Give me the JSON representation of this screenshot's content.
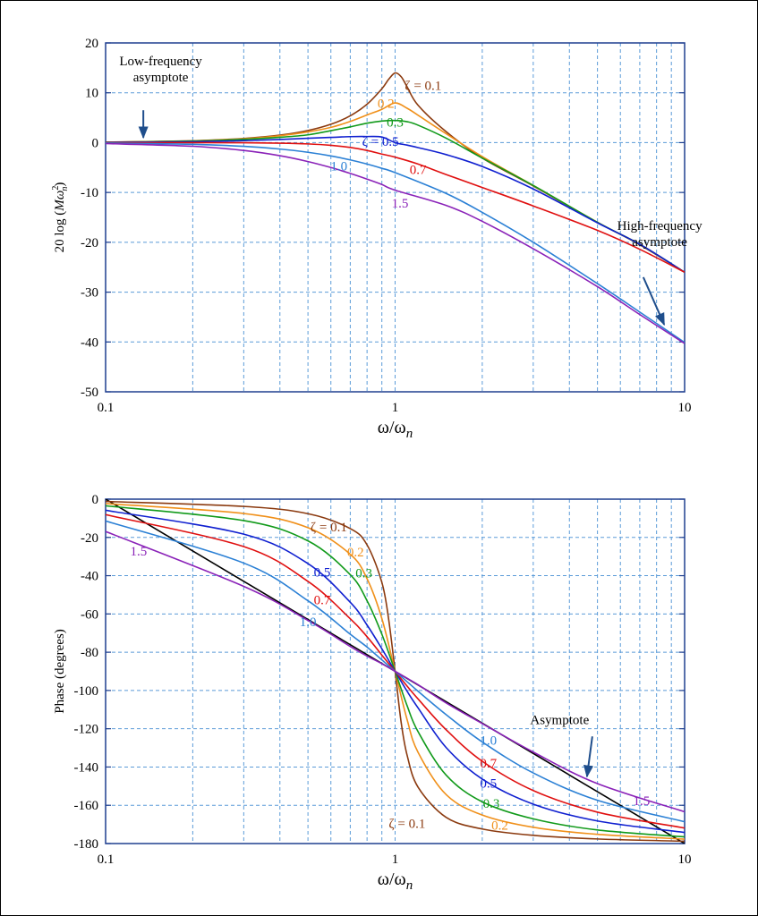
{
  "chart_data": [
    {
      "type": "line",
      "id": "magnitude",
      "xscale": "log",
      "xlim": [
        0.1,
        10
      ],
      "ylim": [
        -50,
        20
      ],
      "xticks": [
        {
          "v": 0.1,
          "label": "0.1"
        },
        {
          "v": 1,
          "label": "1"
        },
        {
          "v": 10,
          "label": "10"
        }
      ],
      "yticks": [
        {
          "v": 20,
          "label": "20"
        },
        {
          "v": 10,
          "label": "10"
        },
        {
          "v": 0,
          "label": "0"
        },
        {
          "v": -10,
          "label": "-10"
        },
        {
          "v": -20,
          "label": "-20"
        },
        {
          "v": -30,
          "label": "-30"
        },
        {
          "v": -40,
          "label": "-40"
        },
        {
          "v": -50,
          "label": "-50"
        }
      ],
      "ylabel": "20 log (Mω",
      "ylabel_sup": "2",
      "ylabel_sub": "n",
      "ylabel_close": ")",
      "xlabel": "ω/ω",
      "xlabel_sub": "n",
      "grid": true,
      "series": [
        {
          "name": "ζ = 0.1",
          "color": "#8B3A0F",
          "x": [
            0.1,
            0.2,
            0.3,
            0.4,
            0.5,
            0.6,
            0.7,
            0.8,
            0.9,
            0.95,
            1.0,
            1.05,
            1.1,
            1.2,
            1.5,
            2,
            3,
            5,
            7,
            10
          ],
          "y": [
            0.09,
            0.37,
            0.84,
            1.5,
            2.43,
            3.68,
            5.38,
            7.7,
            10.8,
            12.7,
            13.98,
            13.2,
            11.2,
            7.5,
            2.2,
            -3.1,
            -8.7,
            -16.0,
            -20.5,
            -26.0
          ]
        },
        {
          "name": "0.2",
          "color": "#F0901A",
          "x": [
            0.1,
            0.2,
            0.3,
            0.4,
            0.5,
            0.6,
            0.7,
            0.8,
            0.9,
            1.0,
            1.1,
            1.2,
            1.5,
            2,
            3,
            5,
            7,
            10
          ],
          "y": [
            0.08,
            0.34,
            0.77,
            1.38,
            2.15,
            3.06,
            4.25,
            5.55,
            6.68,
            7.96,
            6.9,
            5.5,
            1.8,
            -2.8,
            -8.6,
            -16.0,
            -20.4,
            -26.0
          ]
        },
        {
          "name": "0.3",
          "color": "#119A1A",
          "x": [
            0.1,
            0.2,
            0.3,
            0.4,
            0.5,
            0.6,
            0.7,
            0.8,
            0.9,
            1.0,
            1.1,
            1.2,
            1.5,
            2,
            3,
            5,
            7,
            10
          ],
          "y": [
            0.08,
            0.31,
            0.65,
            1.07,
            1.56,
            2.4,
            3.16,
            3.9,
            4.33,
            4.44,
            4.2,
            3.5,
            0.9,
            -3.1,
            -8.6,
            -16.0,
            -20.4,
            -26.0
          ]
        },
        {
          "name": "ζ = 0.5",
          "color": "#1020D0",
          "x": [
            0.1,
            0.2,
            0.3,
            0.4,
            0.5,
            0.6,
            0.7,
            0.8,
            0.9,
            1.0,
            1.1,
            1.2,
            1.5,
            2,
            3,
            5,
            7,
            10
          ],
          "y": [
            0.05,
            0.19,
            0.39,
            0.62,
            0.87,
            1.05,
            1.2,
            1.22,
            1.12,
            0.0,
            -0.5,
            -1.0,
            -2.4,
            -4.8,
            -9.3,
            -16.1,
            -20.4,
            -26.0
          ]
        },
        {
          "name": "0.7",
          "color": "#E01010",
          "x": [
            0.1,
            0.2,
            0.3,
            0.4,
            0.5,
            0.6,
            0.7,
            0.8,
            0.9,
            1.0,
            1.2,
            1.5,
            2,
            3,
            5,
            7,
            10
          ],
          "y": [
            0.0,
            -0.01,
            -0.03,
            -0.11,
            -0.26,
            -0.54,
            -0.97,
            -1.57,
            -2.3,
            -2.92,
            -4.3,
            -6.4,
            -9.0,
            -12.7,
            -17.6,
            -21.4,
            -26.0
          ]
        },
        {
          "name": "1.0",
          "color": "#2B80D5",
          "x": [
            0.1,
            0.2,
            0.3,
            0.4,
            0.5,
            0.6,
            0.7,
            0.8,
            0.9,
            1.0,
            1.5,
            2,
            3,
            5,
            7,
            10
          ],
          "y": [
            -0.09,
            -0.34,
            -0.75,
            -1.29,
            -1.94,
            -2.67,
            -3.47,
            -4.3,
            -5.16,
            -6.02,
            -10.2,
            -14.0,
            -20.0,
            -28.3,
            -34.0,
            -40.1
          ]
        },
        {
          "name": "1.5",
          "color": "#8A22B8",
          "x": [
            0.1,
            0.2,
            0.3,
            0.4,
            0.5,
            0.6,
            0.7,
            0.8,
            0.9,
            1.0,
            1.5,
            2,
            3,
            5,
            7,
            10
          ],
          "y": [
            -0.19,
            -0.73,
            -1.58,
            -2.63,
            -3.8,
            -5.0,
            -6.18,
            -7.32,
            -8.4,
            -9.54,
            -12.6,
            -15.8,
            -21.3,
            -28.9,
            -34.5,
            -40.3
          ]
        }
      ],
      "curve_labels": [
        {
          "text": "ζ = 0.1",
          "color": "#8B3A0F",
          "x": 1.25,
          "y": 11.5
        },
        {
          "text": "0.2",
          "color": "#F0901A",
          "x": 0.93,
          "y": 7.9
        },
        {
          "text": "0.3",
          "color": "#119A1A",
          "x": 1.0,
          "y": 4.1
        },
        {
          "text": "ζ = 0.5",
          "color": "#1020D0",
          "x": 0.89,
          "y": 0.3
        },
        {
          "text": "1.0",
          "color": "#2B80D5",
          "x": 0.64,
          "y": -4.7
        },
        {
          "text": "0.7",
          "color": "#E01010",
          "x": 1.2,
          "y": -5.4
        },
        {
          "text": "1.5",
          "color": "#8A22B8",
          "x": 1.04,
          "y": -12.1
        }
      ],
      "annotations": [
        {
          "lines": [
            "Low-frequency",
            "asymptote"
          ],
          "x": 0.155,
          "y": 15.5,
          "arrow_from": [
            0.135,
            6.5
          ],
          "arrow_to": [
            0.135,
            1
          ]
        },
        {
          "lines": [
            "High-frequency",
            "asymptote"
          ],
          "x": 8.2,
          "y": -17.5,
          "arrow_from": [
            7.2,
            -27
          ],
          "arrow_to": [
            8.5,
            -36.5
          ]
        }
      ]
    },
    {
      "type": "line",
      "id": "phase",
      "xscale": "log",
      "xlim": [
        0.1,
        10
      ],
      "ylim": [
        -180,
        0
      ],
      "xticks": [
        {
          "v": 0.1,
          "label": "0.1"
        },
        {
          "v": 1,
          "label": "1"
        },
        {
          "v": 10,
          "label": "10"
        }
      ],
      "yticks": [
        {
          "v": 0,
          "label": "0"
        },
        {
          "v": -20,
          "label": "-20"
        },
        {
          "v": -40,
          "label": "-40"
        },
        {
          "v": -60,
          "label": "-60"
        },
        {
          "v": -80,
          "label": "-80"
        },
        {
          "v": -100,
          "label": "-100"
        },
        {
          "v": -120,
          "label": "-120"
        },
        {
          "v": -140,
          "label": "-140"
        },
        {
          "v": -160,
          "label": "-160"
        },
        {
          "v": -180,
          "label": "-180"
        }
      ],
      "ylabel": "Phase (degrees)",
      "xlabel": "ω/ω",
      "xlabel_sub": "n",
      "grid": true,
      "asymptote": {
        "color": "#000000",
        "x": [
          0.1,
          10
        ],
        "y": [
          0,
          -180
        ]
      },
      "series": [
        {
          "name": "ζ = 0.1",
          "color": "#8B3A0F",
          "x": [
            0.1,
            0.3,
            0.5,
            0.7,
            0.8,
            0.9,
            0.95,
            1.0,
            1.05,
            1.1,
            1.2,
            1.5,
            2,
            3,
            5,
            10
          ],
          "y": [
            -1.2,
            -3.8,
            -7.6,
            -15.4,
            -23.9,
            -43.5,
            -62.8,
            -90,
            -117,
            -133.8,
            -150.5,
            -166.3,
            -172.4,
            -175.7,
            -177.6,
            -178.8
          ]
        },
        {
          "name": "0.2",
          "color": "#F0901A",
          "x": [
            0.1,
            0.3,
            0.5,
            0.7,
            0.8,
            0.9,
            1.0,
            1.1,
            1.2,
            1.5,
            2,
            3,
            5,
            10
          ],
          "y": [
            -2.3,
            -7.5,
            -14.9,
            -28.8,
            -41.6,
            -62.4,
            -90,
            -115.2,
            -132.3,
            -154.4,
            -165.1,
            -171.5,
            -175.2,
            -177.7
          ]
        },
        {
          "name": "0.3",
          "color": "#119A1A",
          "x": [
            0.1,
            0.3,
            0.5,
            0.7,
            0.8,
            0.9,
            1.0,
            1.1,
            1.2,
            1.5,
            2,
            3,
            5,
            10
          ],
          "y": [
            -3.5,
            -11.2,
            -21.8,
            -39.5,
            -53.1,
            -70.6,
            -90,
            -107.9,
            -121.5,
            -144.2,
            -158.2,
            -167.1,
            -172.9,
            -176.5
          ]
        },
        {
          "name": "0.5",
          "color": "#1020D0",
          "x": [
            0.1,
            0.3,
            0.5,
            0.7,
            0.8,
            0.9,
            1.0,
            1.1,
            1.2,
            1.5,
            2,
            3,
            5,
            10
          ],
          "y": [
            -5.8,
            -18.3,
            -33.7,
            -53.9,
            -65.8,
            -78.2,
            -90,
            -100.4,
            -109.1,
            -129.8,
            -146.3,
            -159.4,
            -168.2,
            -174.2
          ]
        },
        {
          "name": "0.7",
          "color": "#E01010",
          "x": [
            0.1,
            0.3,
            0.5,
            0.7,
            0.8,
            0.9,
            1.0,
            1.1,
            1.2,
            1.5,
            2,
            3,
            5,
            10
          ],
          "y": [
            -8.1,
            -24.8,
            -43.0,
            -62.5,
            -71.9,
            -81.5,
            -90,
            -97.7,
            -104.4,
            -120.5,
            -137.0,
            -152.3,
            -163.6,
            -171.9
          ]
        },
        {
          "name": "1.0",
          "color": "#2B80D5",
          "x": [
            0.1,
            0.3,
            0.5,
            0.7,
            0.8,
            0.9,
            1.0,
            1.1,
            1.2,
            1.5,
            2,
            3,
            5,
            10
          ],
          "y": [
            -11.4,
            -33.4,
            -53.1,
            -70.6,
            -77.3,
            -84.0,
            -90,
            -95.4,
            -100.4,
            -112.6,
            -126.9,
            -143.1,
            -157.4,
            -168.6
          ]
        },
        {
          "name": "1.5",
          "color": "#8A22B8",
          "x": [
            0.1,
            0.3,
            0.5,
            0.7,
            0.8,
            0.9,
            1.0,
            1.1,
            1.2,
            1.5,
            2,
            3,
            5,
            10
          ],
          "y": [
            -16.9,
            -45.6,
            -63.4,
            -77.0,
            -82.0,
            -86.0,
            -90,
            -93.6,
            -97.0,
            -106.5,
            -117.3,
            -132.2,
            -148.7,
            -163.4
          ]
        }
      ],
      "curve_labels": [
        {
          "text": "ζ = 0.1",
          "color": "#8B3A0F",
          "x": 0.59,
          "y": -14.5
        },
        {
          "text": "0.2",
          "color": "#F0901A",
          "x": 0.73,
          "y": -27.5
        },
        {
          "text": "0.3",
          "color": "#119A1A",
          "x": 0.78,
          "y": -38.5
        },
        {
          "text": "0.5",
          "color": "#1020D0",
          "x": 0.56,
          "y": -38
        },
        {
          "text": "0.7",
          "color": "#E01010",
          "x": 0.56,
          "y": -52.5
        },
        {
          "text": "1.0",
          "color": "#2B80D5",
          "x": 0.5,
          "y": -64
        },
        {
          "text": "1.5",
          "color": "#8A22B8",
          "x": 0.13,
          "y": -27
        },
        {
          "text": "1.0",
          "color": "#2B80D5",
          "x": 2.1,
          "y": -126
        },
        {
          "text": "0.7",
          "color": "#E01010",
          "x": 2.1,
          "y": -138
        },
        {
          "text": "0.5",
          "color": "#1020D0",
          "x": 2.1,
          "y": -148.5
        },
        {
          "text": "0.3",
          "color": "#119A1A",
          "x": 2.15,
          "y": -159
        },
        {
          "text": "0.2",
          "color": "#F0901A",
          "x": 2.3,
          "y": -170.5
        },
        {
          "text": "ζ = 0.1",
          "color": "#8B3A0F",
          "x": 1.1,
          "y": -169.5
        },
        {
          "text": "1.5",
          "color": "#8A22B8",
          "x": 7.1,
          "y": -157.5
        }
      ],
      "annotations": [
        {
          "lines": [
            "Asymptote"
          ],
          "x": 3.7,
          "y": -117.5,
          "arrow_from": [
            4.8,
            -124
          ],
          "arrow_to": [
            4.6,
            -145
          ]
        }
      ]
    }
  ]
}
